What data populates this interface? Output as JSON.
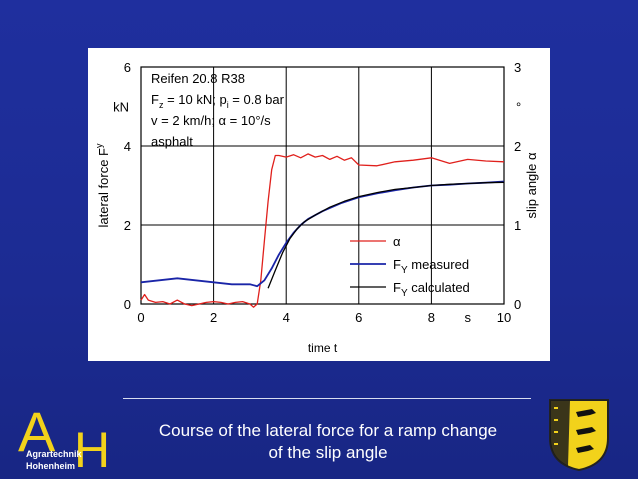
{
  "caption": {
    "line1": "Course of the lateral force for a ramp change",
    "line2": "of the slip angle"
  },
  "logo": {
    "text_a": "A",
    "text_h": "H",
    "line1": "Agrartechnik",
    "line2": "Hohenheim"
  },
  "colors": {
    "background": "#1f2f9e",
    "alpha_series": "#e0201c",
    "fy_measured": "#1a25a8",
    "fy_calculated": "#000000",
    "logo_yellow": "#f2d21b"
  },
  "chart_data": {
    "type": "line",
    "xlabel": "time t",
    "x_unit": "s",
    "xlim": [
      0,
      10
    ],
    "x_ticks": [
      "0",
      "2",
      "4",
      "6",
      "8",
      "10"
    ],
    "ylabel_left": "lateral force F",
    "ylabel_left_sub": "y",
    "y_unit_left": "kN",
    "ylim_left": [
      0,
      6
    ],
    "y_ticks_left": [
      "0",
      "2",
      "4",
      "6"
    ],
    "ylabel_right": "slip angle α",
    "y_unit_right": "°",
    "ylim_right": [
      0,
      3
    ],
    "y_ticks_right": [
      "0",
      "1",
      "2",
      "3"
    ],
    "grid": true,
    "legend_position": "bottom-right",
    "annotation": {
      "line1": "Reifen 20.8 R38",
      "line2_a": "F",
      "line2_a_sub": "z",
      "line2_b": " = 10 kN; p",
      "line2_b_sub": "i",
      "line2_c": " = 0.8 bar",
      "line3": "v = 2 km/h; α = 10°/s",
      "line4": "asphalt"
    },
    "series": [
      {
        "name": "α",
        "axis": "right",
        "legend_main": "α",
        "legend_sub": "",
        "legend_suffix": "",
        "x": [
          0,
          0.1,
          0.2,
          0.4,
          0.6,
          0.8,
          1.0,
          1.2,
          1.4,
          1.6,
          1.8,
          2.0,
          2.2,
          2.4,
          2.6,
          2.8,
          3.0,
          3.1,
          3.2,
          3.3,
          3.4,
          3.5,
          3.6,
          3.7,
          3.8,
          4.0,
          4.2,
          4.4,
          4.6,
          4.8,
          5.0,
          5.2,
          5.4,
          5.6,
          5.8,
          6.0,
          6.5,
          7.0,
          7.5,
          8.0,
          8.5,
          9.0,
          9.5,
          10.0
        ],
        "y": [
          0.05,
          0.12,
          0.05,
          0.02,
          0.03,
          0.0,
          0.05,
          0.0,
          -0.02,
          0.0,
          0.02,
          0.03,
          0.02,
          0.0,
          0.02,
          0.03,
          0.0,
          -0.04,
          0.0,
          0.3,
          0.8,
          1.3,
          1.7,
          1.88,
          1.88,
          1.86,
          1.89,
          1.85,
          1.9,
          1.86,
          1.88,
          1.83,
          1.87,
          1.82,
          1.85,
          1.76,
          1.75,
          1.8,
          1.82,
          1.85,
          1.78,
          1.83,
          1.81,
          1.8
        ]
      },
      {
        "name": "F_Y measured",
        "axis": "left",
        "legend_main": "F",
        "legend_sub": "Y",
        "legend_suffix": " measured",
        "x": [
          0,
          0.5,
          1.0,
          1.5,
          2.0,
          2.5,
          3.0,
          3.2,
          3.4,
          3.6,
          3.8,
          4.0,
          4.2,
          4.4,
          4.6,
          5.0,
          5.5,
          6.0,
          6.5,
          7.0,
          7.5,
          8.0,
          8.5,
          9.0,
          9.5,
          10.0
        ],
        "y": [
          0.55,
          0.6,
          0.65,
          0.6,
          0.55,
          0.5,
          0.5,
          0.45,
          0.6,
          0.9,
          1.25,
          1.55,
          1.8,
          2.0,
          2.15,
          2.35,
          2.55,
          2.7,
          2.8,
          2.88,
          2.95,
          3.0,
          3.02,
          3.05,
          3.07,
          3.1
        ]
      },
      {
        "name": "F_Y calculated",
        "axis": "left",
        "legend_main": "F",
        "legend_sub": "Y",
        "legend_suffix": " calculated",
        "x": [
          3.5,
          3.7,
          3.9,
          4.1,
          4.3,
          4.5,
          4.8,
          5.2,
          5.6,
          6.0,
          6.5,
          7.0,
          7.5,
          8.0,
          8.5,
          9.0,
          9.5,
          10.0
        ],
        "y": [
          0.4,
          0.85,
          1.3,
          1.65,
          1.9,
          2.08,
          2.25,
          2.45,
          2.6,
          2.72,
          2.82,
          2.9,
          2.95,
          3.0,
          3.03,
          3.05,
          3.07,
          3.08
        ]
      }
    ]
  }
}
